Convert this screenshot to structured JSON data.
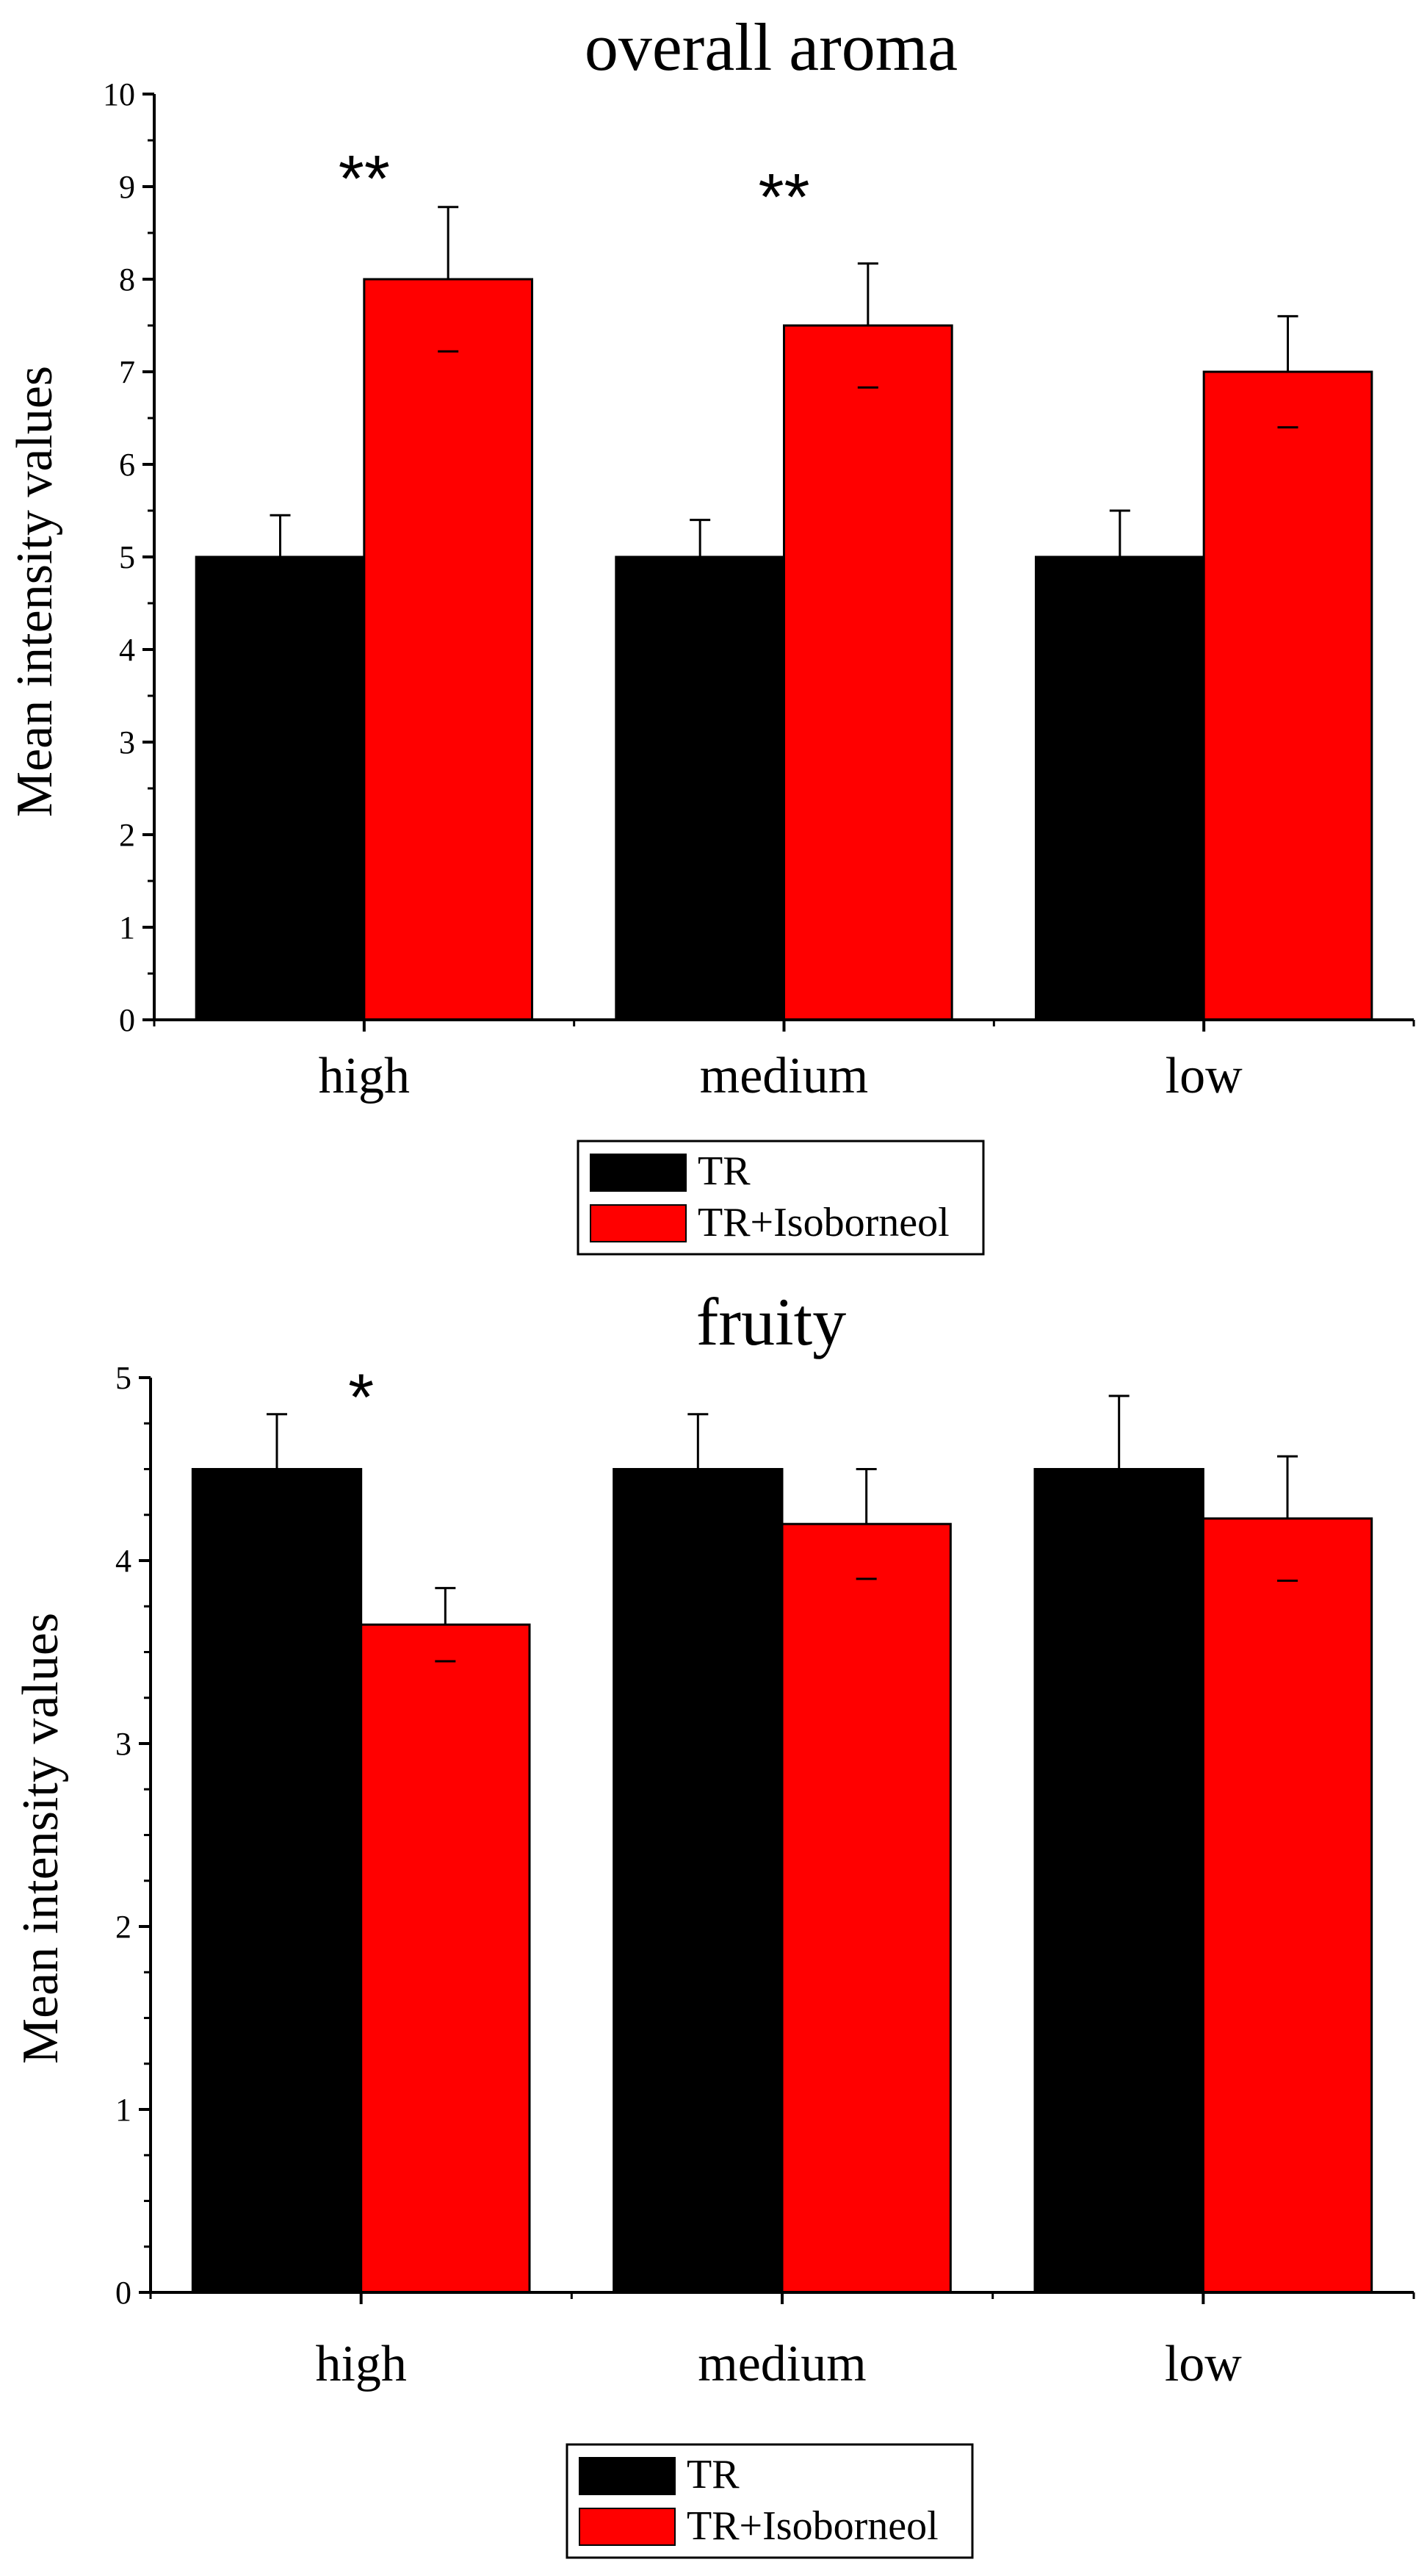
{
  "chart_data": [
    {
      "type": "bar",
      "title": "overall aroma",
      "xlabel": "",
      "ylabel": "Mean intensity values",
      "ylim": [
        0,
        10
      ],
      "yticks": [
        "0",
        "1",
        "2",
        "3",
        "4",
        "5",
        "6",
        "7",
        "8",
        "9",
        "10"
      ],
      "categories": [
        "high",
        "medium",
        "low"
      ],
      "series": [
        {
          "name": "TR",
          "color": "#000000",
          "values": [
            5.0,
            5.0,
            5.0
          ],
          "errors": [
            0.45,
            0.4,
            0.5
          ]
        },
        {
          "name": "TR+Isoborneol",
          "color": "#ff0000",
          "values": [
            8.0,
            7.5,
            7.0
          ],
          "errors": [
            0.78,
            0.67,
            0.6
          ]
        }
      ],
      "annotations": [
        {
          "text": "**",
          "category": "high",
          "value": 9.2
        },
        {
          "text": "**",
          "category": "medium",
          "value": 9.0
        }
      ],
      "legend": [
        "TR",
        "TR+Isoborneol"
      ],
      "legend_position": "bottom-center"
    },
    {
      "type": "bar",
      "title": "fruity",
      "xlabel": "",
      "ylabel": "Mean intensity values",
      "ylim": [
        0,
        5
      ],
      "yticks": [
        "0",
        "1",
        "2",
        "3",
        "4",
        "5"
      ],
      "categories": [
        "high",
        "medium",
        "low"
      ],
      "series": [
        {
          "name": "TR",
          "color": "#000000",
          "values": [
            4.5,
            4.5,
            4.5
          ],
          "errors": [
            0.3,
            0.3,
            0.4
          ]
        },
        {
          "name": "TR+Isoborneol",
          "color": "#ff0000",
          "values": [
            3.65,
            4.2,
            4.23
          ],
          "errors": [
            0.2,
            0.3,
            0.34
          ]
        }
      ],
      "annotations": [
        {
          "text": "*",
          "category": "high",
          "value": 4.95
        }
      ],
      "legend": [
        "TR",
        "TR+Isoborneol"
      ],
      "legend_position": "bottom-center"
    }
  ]
}
